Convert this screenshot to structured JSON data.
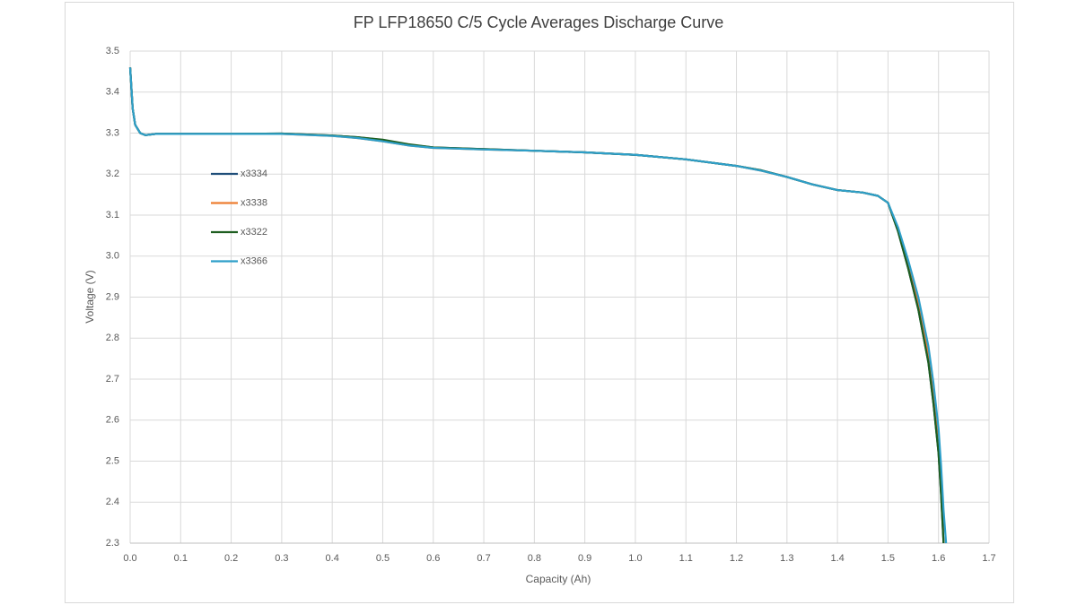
{
  "chart_data": {
    "type": "line",
    "title": "FP LFP18650 C/5 Cycle Averages Discharge Curve",
    "x_label": "Capacity (Ah)",
    "y_label": "Voltage (V)",
    "x": [
      0,
      0.005,
      0.01,
      0.02,
      0.03,
      0.05,
      0.1,
      0.2,
      0.3,
      0.4,
      0.45,
      0.5,
      0.55,
      0.6,
      0.7,
      0.8,
      0.9,
      1.0,
      1.1,
      1.2,
      1.25,
      1.3,
      1.35,
      1.4,
      1.45,
      1.48,
      1.5,
      1.52,
      1.54,
      1.56,
      1.58,
      1.59,
      1.6,
      1.605,
      1.61,
      1.615
    ],
    "series": [
      {
        "name": "x3334",
        "color": "#1f4e79",
        "values": [
          3.46,
          3.36,
          3.32,
          3.3,
          3.295,
          3.298,
          3.298,
          3.298,
          3.299,
          3.294,
          3.29,
          3.283,
          3.272,
          3.265,
          3.261,
          3.257,
          3.253,
          3.247,
          3.236,
          3.22,
          3.209,
          3.193,
          3.175,
          3.161,
          3.155,
          3.147,
          3.13,
          3.06,
          2.97,
          2.87,
          2.74,
          2.64,
          2.52,
          2.42,
          2.3,
          null
        ]
      },
      {
        "name": "x3338",
        "color": "#ed7d31",
        "values": [
          3.46,
          3.36,
          3.32,
          3.3,
          3.295,
          3.298,
          3.298,
          3.298,
          3.298,
          3.293,
          3.288,
          3.28,
          3.27,
          3.264,
          3.26,
          3.257,
          3.253,
          3.247,
          3.236,
          3.22,
          3.208,
          3.193,
          3.175,
          3.161,
          3.155,
          3.147,
          3.13,
          3.065,
          2.98,
          2.885,
          2.76,
          2.665,
          2.55,
          2.45,
          2.33,
          null
        ]
      },
      {
        "name": "x3322",
        "color": "#1e5e20",
        "values": [
          3.46,
          3.36,
          3.32,
          3.3,
          3.295,
          3.298,
          3.298,
          3.298,
          3.299,
          3.294,
          3.29,
          3.284,
          3.273,
          3.265,
          3.261,
          3.257,
          3.253,
          3.247,
          3.236,
          3.22,
          3.209,
          3.193,
          3.175,
          3.161,
          3.155,
          3.147,
          3.13,
          3.06,
          2.97,
          2.87,
          2.74,
          2.64,
          2.52,
          2.42,
          2.3,
          null
        ]
      },
      {
        "name": "x3366",
        "color": "#2e9fc9",
        "values": [
          3.46,
          3.36,
          3.32,
          3.3,
          3.295,
          3.298,
          3.298,
          3.298,
          3.298,
          3.293,
          3.288,
          3.28,
          3.27,
          3.264,
          3.26,
          3.257,
          3.253,
          3.247,
          3.236,
          3.22,
          3.208,
          3.193,
          3.175,
          3.161,
          3.155,
          3.147,
          3.13,
          3.07,
          2.99,
          2.9,
          2.78,
          2.69,
          2.58,
          2.49,
          2.38,
          2.3
        ]
      }
    ],
    "xlim": [
      0,
      1.7
    ],
    "ylim": [
      2.3,
      3.5
    ],
    "xticks": [
      {
        "value": 0,
        "label": "0.0"
      },
      0.1,
      0.2,
      0.3,
      0.4,
      0.5,
      0.6,
      0.7,
      0.8,
      0.9,
      {
        "value": 1,
        "label": "1.0"
      },
      1.1,
      1.2,
      1.3,
      1.4,
      1.5,
      1.6,
      1.7
    ],
    "yticks": [
      2.3,
      2.4,
      2.5,
      2.6,
      2.7,
      2.8,
      2.9,
      {
        "value": 3,
        "label": "3.0"
      },
      3.1,
      3.2,
      3.3,
      3.4,
      3.5
    ],
    "grid": true,
    "legend": "left"
  }
}
